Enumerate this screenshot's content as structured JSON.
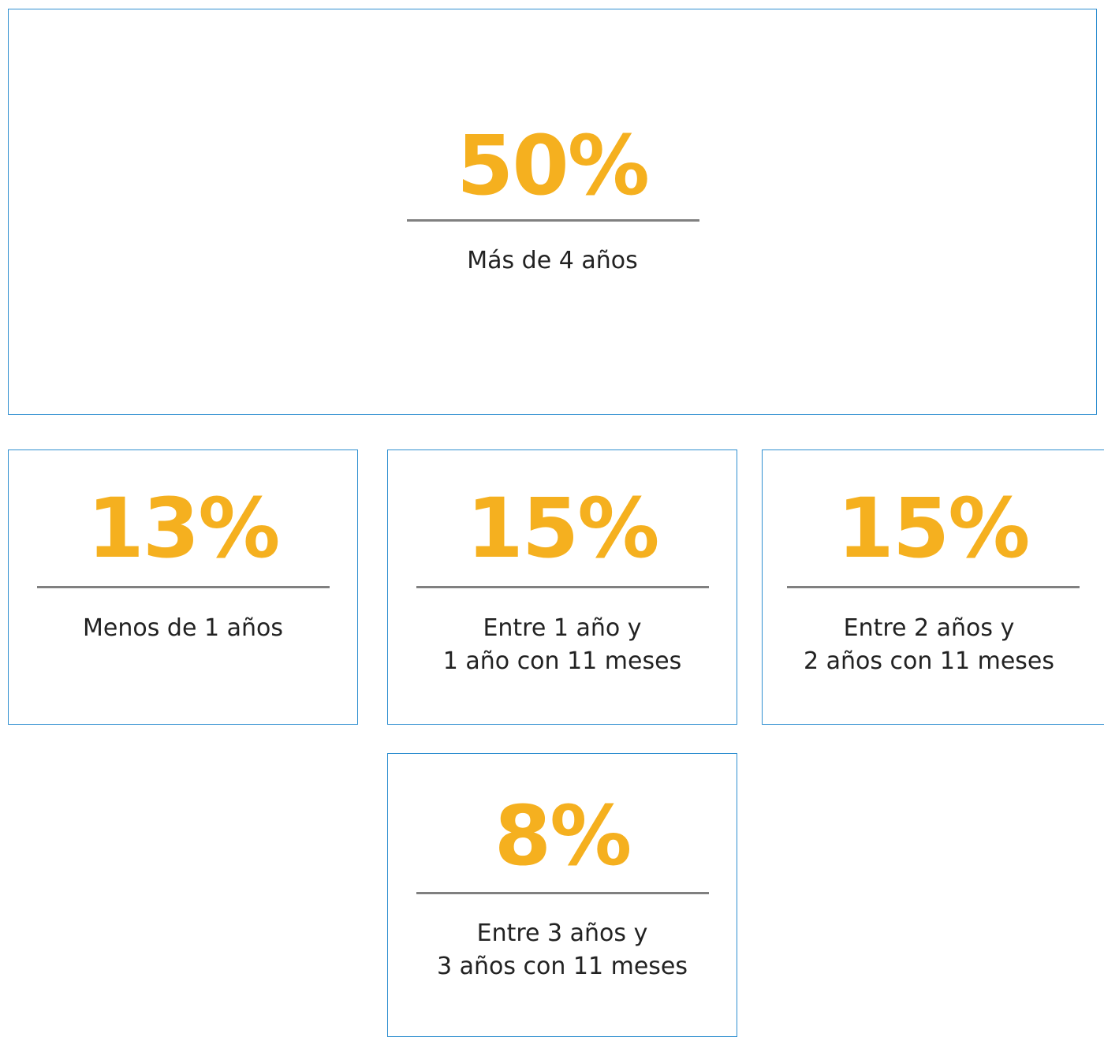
{
  "cards": [
    {
      "value": "50%",
      "label": [
        "Más de 4 años"
      ]
    },
    {
      "value": "13%",
      "label": [
        "Menos de 1 años"
      ]
    },
    {
      "value": "15%",
      "label": [
        "Entre 1 año y",
        "1 año con 11 meses"
      ]
    },
    {
      "value": "15%",
      "label": [
        "Entre 2 años y",
        "2 años con 11 meses"
      ]
    },
    {
      "value": "8%",
      "label": [
        "Entre 3 años y",
        "3 años con 11 meses"
      ]
    }
  ]
}
